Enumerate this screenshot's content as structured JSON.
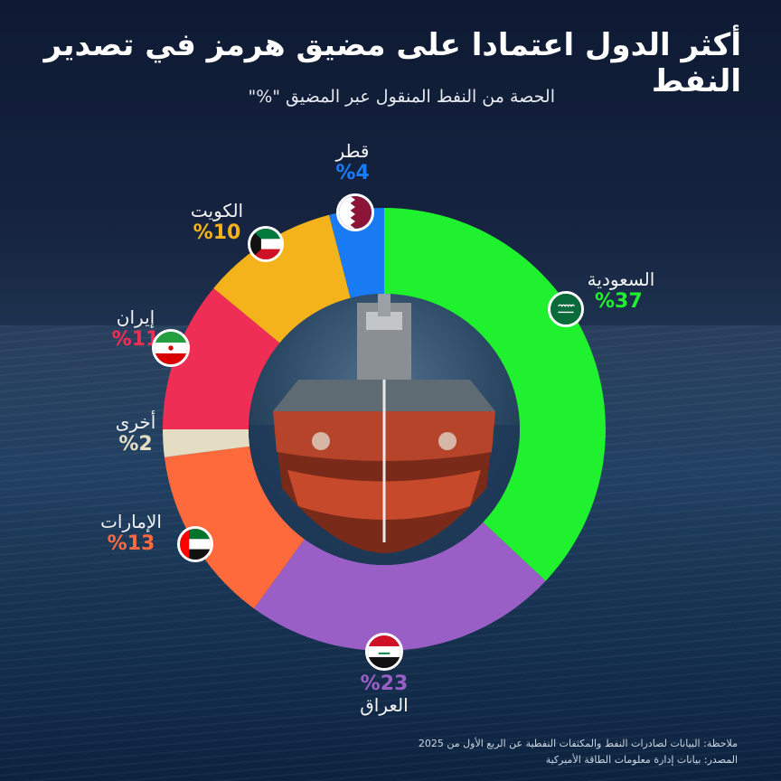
{
  "header": {
    "title": "أكثر الدول اعتمادا على مضيق هرمز في تصدير النفط",
    "subtitle": "الحصة من النفط المنقول عبر المضيق \"%\""
  },
  "chart_data": {
    "type": "pie",
    "donut": true,
    "start": "top",
    "direction": "clockwise",
    "slices": [
      {
        "label": "السعودية",
        "value": 37,
        "value_text": "%37",
        "color": "#1ff12e",
        "flag": "saudi"
      },
      {
        "label": "العراق",
        "value": 23,
        "value_text": "%23",
        "color": "#9a5fc6",
        "flag": "iraq"
      },
      {
        "label": "الإمارات",
        "value": 13,
        "value_text": "%13",
        "color": "#ff6a3d",
        "flag": "uae"
      },
      {
        "label": "أخرى",
        "value": 2,
        "value_text": "%2",
        "color": "#e4ddc4",
        "flag": null
      },
      {
        "label": "إيران",
        "value": 11,
        "value_text": "%11",
        "color": "#ee2e55",
        "flag": "iran"
      },
      {
        "label": "الكويت",
        "value": 10,
        "value_text": "%10",
        "color": "#f4b21b",
        "flag": "kuwait"
      },
      {
        "label": "قطر",
        "value": 4,
        "value_text": "%4",
        "color": "#1a7cf5",
        "flag": "qatar"
      }
    ]
  },
  "footer": {
    "note": "ملاحظة: البيانات لصادرات النفط والمكثفات النفطية عن الربع الأول من 2025",
    "source": "المصدر: بيانات إدارة معلومات الطاقة الأميركية"
  }
}
